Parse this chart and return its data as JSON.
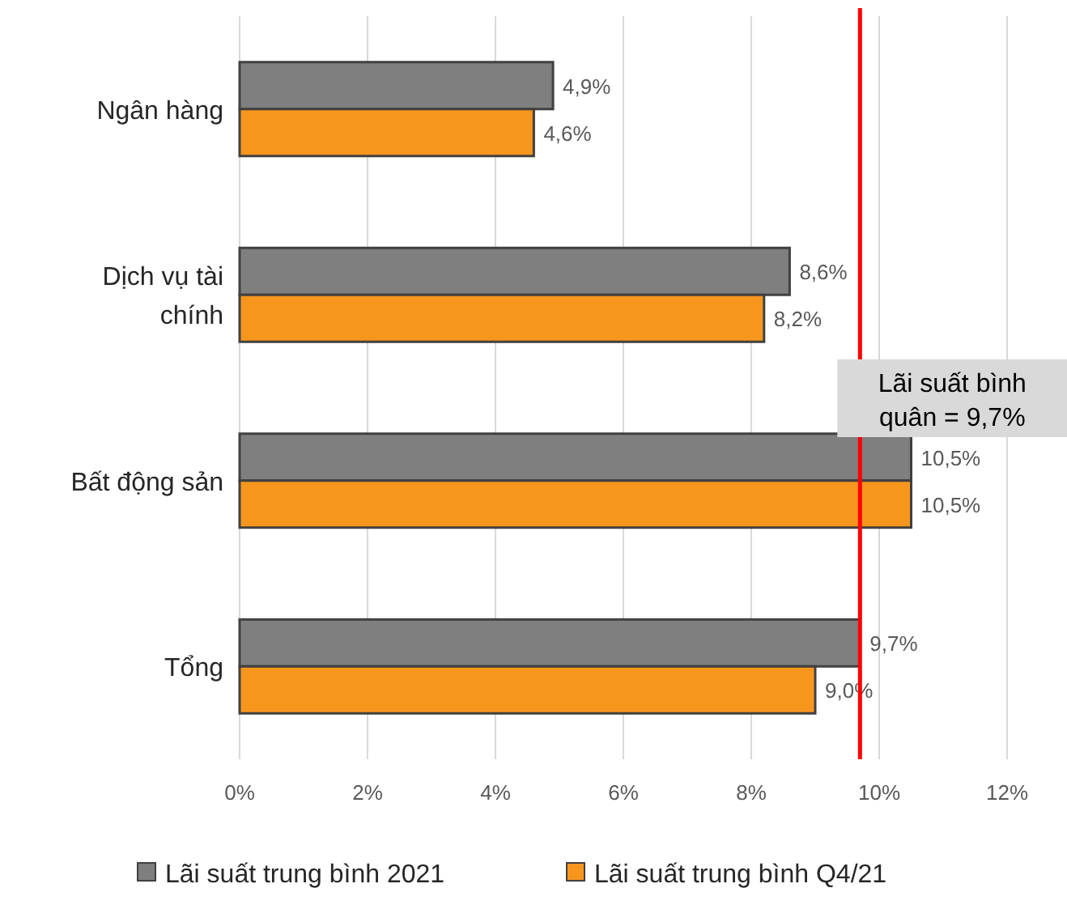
{
  "chart_data": {
    "type": "bar",
    "orientation": "horizontal",
    "categories": [
      "Ngân hàng",
      "Dịch vụ tài chính",
      "Bất động sản",
      "Tổng"
    ],
    "series": [
      {
        "name": "Lãi suất trung bình 2021",
        "color": "#7f7f7f",
        "values": [
          4.9,
          8.6,
          10.5,
          9.7
        ],
        "value_labels": [
          "4,9%",
          "8,6%",
          "10,5%",
          "9,7%"
        ]
      },
      {
        "name": "Lãi suất trung bình Q4/21",
        "color": "#f7961d",
        "values": [
          4.6,
          8.2,
          10.5,
          9.0
        ],
        "value_labels": [
          "4,6%",
          "8,2%",
          "10,5%",
          "9,0%"
        ]
      }
    ],
    "xlim": [
      0,
      12
    ],
    "xticks": [
      {
        "value": 0,
        "label": "0%"
      },
      {
        "value": 2,
        "label": "2%"
      },
      {
        "value": 4,
        "label": "4%"
      },
      {
        "value": 6,
        "label": "6%"
      },
      {
        "value": 8,
        "label": "8%"
      },
      {
        "value": 10,
        "label": "10%"
      },
      {
        "value": 12,
        "label": "12%"
      }
    ],
    "grid": "x",
    "legend": "bottom",
    "ref_lines": [
      {
        "axis": "x",
        "value": 9.7,
        "label": "Lãi suất bình quân = 9,7%",
        "color": "#ff0000"
      }
    ]
  }
}
